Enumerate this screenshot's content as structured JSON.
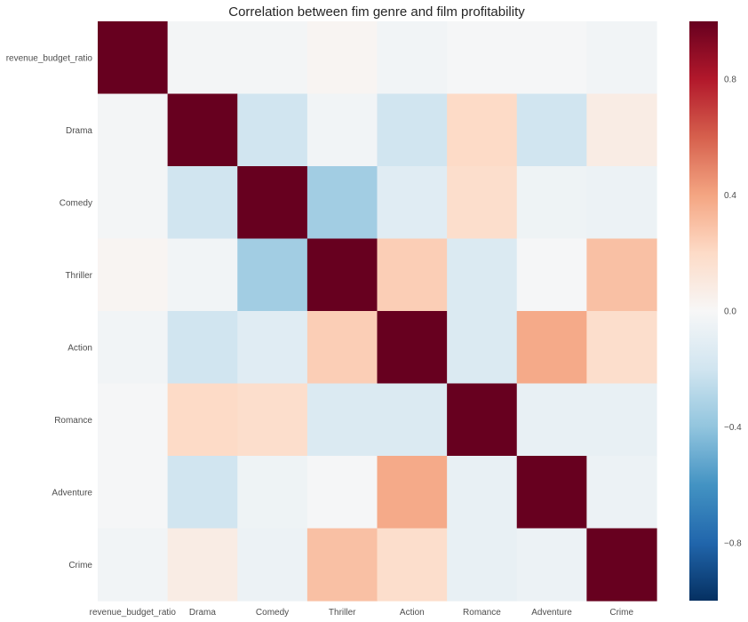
{
  "chart_data": {
    "type": "heatmap",
    "title": "Correlation between fim genre and film profitability",
    "xlabel": "",
    "ylabel": "",
    "x_categories": [
      "revenue_budget_ratio",
      "Drama",
      "Comedy",
      "Thriller",
      "Action",
      "Romance",
      "Adventure",
      "Crime"
    ],
    "y_categories": [
      "revenue_budget_ratio",
      "Drama",
      "Comedy",
      "Thriller",
      "Action",
      "Romance",
      "Adventure",
      "Crime"
    ],
    "values": [
      [
        1.0,
        -0.02,
        -0.02,
        0.02,
        -0.03,
        -0.01,
        -0.01,
        -0.03
      ],
      [
        -0.02,
        1.0,
        -0.2,
        -0.03,
        -0.2,
        0.2,
        -0.2,
        0.08
      ],
      [
        -0.02,
        -0.2,
        1.0,
        -0.35,
        -0.12,
        0.18,
        -0.05,
        -0.06
      ],
      [
        0.02,
        -0.03,
        -0.35,
        1.0,
        0.25,
        -0.15,
        -0.01,
        0.3
      ],
      [
        -0.03,
        -0.2,
        -0.12,
        0.25,
        1.0,
        -0.15,
        0.38,
        0.18
      ],
      [
        -0.01,
        0.2,
        0.18,
        -0.15,
        -0.15,
        1.0,
        -0.08,
        -0.08
      ],
      [
        -0.01,
        -0.2,
        -0.05,
        -0.01,
        0.38,
        -0.08,
        1.0,
        -0.06
      ],
      [
        -0.03,
        0.08,
        -0.06,
        0.3,
        0.18,
        -0.08,
        -0.06,
        1.0
      ]
    ],
    "vmin": -1.0,
    "vmax": 1.0,
    "colormap": "RdBu_r",
    "colorbar_ticks": [
      -0.8,
      -0.4,
      0.0,
      0.4,
      0.8
    ],
    "colorbar_tick_labels": [
      "−0.8",
      "−0.4",
      "0.0",
      "0.4",
      "0.8"
    ],
    "grid": false
  }
}
